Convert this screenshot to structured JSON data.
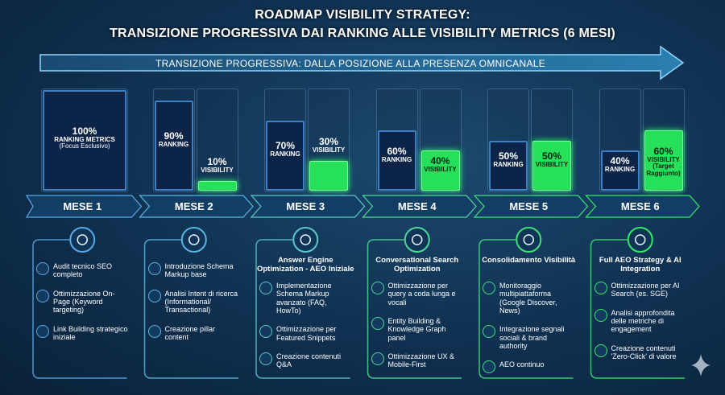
{
  "title": [
    "ROADMAP VISIBILITY STRATEGY:",
    "TRANSIZIONE PROGRESSIVA DAI RANKING ALLE VISIBILITY METRICS (6 MESI)"
  ],
  "arrow_text": "TRANSIZIONE PROGRESSIVA: DALLA POSIZIONE ALLA PRESENZA OMNICANALE",
  "months": [
    {
      "label": "MESE 1",
      "ranking": {
        "value": 100,
        "text": "100%",
        "caption": "RANKING METRICS",
        "note": "(Focus Esclusivo)"
      },
      "items": [
        "Audit tecnico SEO completo",
        "Ottimizzazione On-Page (Keyword targeting)",
        "Link Building strategico iniziale"
      ]
    },
    {
      "label": "MESE 2",
      "ranking": {
        "value": 90,
        "text": "90%",
        "caption": "RANKING"
      },
      "visibility": {
        "value": 10,
        "text": "10%",
        "caption": "VISIBILITY"
      },
      "items": [
        "Introduzione Schema Markup base",
        "Analisi Intent di ricerca (Informational/ Transactional)",
        "Creazione pillar content"
      ]
    },
    {
      "label": "MESE 3",
      "ranking": {
        "value": 70,
        "text": "70%",
        "caption": "RANKING"
      },
      "visibility": {
        "value": 30,
        "text": "30%",
        "caption": "VISIBILITY"
      },
      "heading": "Answer Engine Optimization - AEO Iniziale",
      "items": [
        "Implementazione Schema Markup avanzato (FAQ, HowTo)",
        "Ottimizzazione per Featured Snippets",
        "Creazione contenuti Q&A"
      ]
    },
    {
      "label": "MESE 4",
      "ranking": {
        "value": 60,
        "text": "60%",
        "caption": "RANKING"
      },
      "visibility": {
        "value": 40,
        "text": "40%",
        "caption": "VISIBILITY"
      },
      "heading": "Conversational Search Optimization",
      "items": [
        "Ottimizzazione per query a coda lunga e vocali",
        "Entity Building & Knowledge Graph panel",
        "Ottimizzazione UX & Mobile-First"
      ]
    },
    {
      "label": "MESE 5",
      "ranking": {
        "value": 50,
        "text": "50%",
        "caption": "RANKING"
      },
      "visibility": {
        "value": 50,
        "text": "50%",
        "caption": "VISIBILITY"
      },
      "heading": "Consolidamento Visibilità",
      "items": [
        "Monitoraggio multipiattaforma (Google Discover, News)",
        "Integrazione segnali sociali & brand authority",
        "AEO continuo"
      ]
    },
    {
      "label": "MESE 6",
      "ranking": {
        "value": 40,
        "text": "40%",
        "caption": "RANKING"
      },
      "visibility": {
        "value": 60,
        "text": "60%",
        "caption": "VISIBILITY (Target Raggiunto)"
      },
      "heading": "Full AEO Strategy & AI Integration",
      "items": [
        "Ottimizzazione per AI Search (es. SGE)",
        "Analisi approfondita delle metriche di engagement",
        "Creazione contenuti 'Zero-Click' di valore"
      ]
    }
  ]
}
